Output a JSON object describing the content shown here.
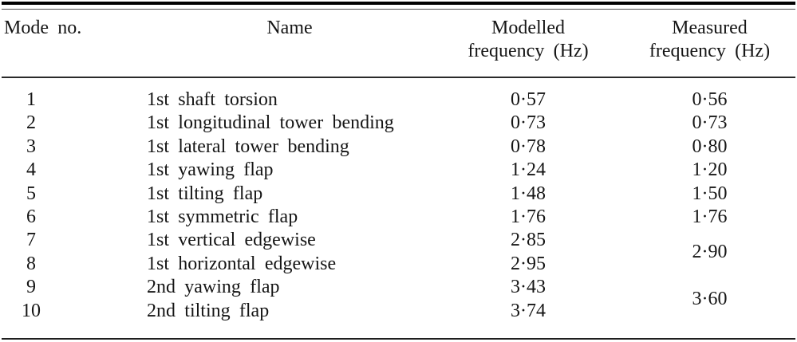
{
  "table": {
    "header": {
      "mode": "Mode no.",
      "name": "Name",
      "modelled_line1": "Modelled",
      "modelled_line2": "frequency (Hz)",
      "measured_line1": "Measured",
      "measured_line2": "frequency (Hz)"
    },
    "rows": [
      {
        "mode": "1",
        "name": "1st shaft torsion",
        "modelled": "0·57",
        "measured": "0·56",
        "measured_span": 1
      },
      {
        "mode": "2",
        "name": "1st longitudinal tower bending",
        "modelled": "0·73",
        "measured": "0·73",
        "measured_span": 1
      },
      {
        "mode": "3",
        "name": "1st lateral tower bending",
        "modelled": "0·78",
        "measured": "0·80",
        "measured_span": 1
      },
      {
        "mode": "4",
        "name": "1st yawing flap",
        "modelled": "1·24",
        "measured": "1·20",
        "measured_span": 1
      },
      {
        "mode": "5",
        "name": "1st tilting flap",
        "modelled": "1·48",
        "measured": "1·50",
        "measured_span": 1
      },
      {
        "mode": "6",
        "name": "1st symmetric flap",
        "modelled": "1·76",
        "measured": "1·76",
        "measured_span": 1
      },
      {
        "mode": "7",
        "name": "1st vertical edgewise",
        "modelled": "2·85",
        "measured": "2·90",
        "measured_span": 2
      },
      {
        "mode": "8",
        "name": "1st horizontal edgewise",
        "modelled": "2·95",
        "measured": null,
        "measured_span": 0
      },
      {
        "mode": "9",
        "name": "2nd yawing flap",
        "modelled": "3·43",
        "measured": "3·60",
        "measured_span": 2
      },
      {
        "mode": "10",
        "name": "2nd tilting flap",
        "modelled": "3·74",
        "measured": null,
        "measured_span": 0
      }
    ]
  },
  "chart_data": {
    "type": "table",
    "columns": [
      "Mode no.",
      "Name",
      "Modelled frequency (Hz)",
      "Measured frequency (Hz)"
    ],
    "decimal_separator": "middle-dot",
    "rows": [
      [
        "1",
        "1st shaft torsion",
        "0·57",
        "0·56"
      ],
      [
        "2",
        "1st longitudinal tower bending",
        "0·73",
        "0·73"
      ],
      [
        "3",
        "1st lateral tower bending",
        "0·78",
        "0·80"
      ],
      [
        "4",
        "1st yawing flap",
        "1·24",
        "1·20"
      ],
      [
        "5",
        "1st tilting flap",
        "1·48",
        "1·50"
      ],
      [
        "6",
        "1st symmetric flap",
        "1·76",
        "1·76"
      ],
      [
        "7",
        "1st vertical edgewise",
        "2·85",
        "2·90 (shared with mode 8)"
      ],
      [
        "8",
        "1st horizontal edgewise",
        "2·95",
        ""
      ],
      [
        "9",
        "2nd yawing flap",
        "3·43",
        "3·60 (shared with mode 10)"
      ],
      [
        "10",
        "2nd tilting flap",
        "3·74",
        ""
      ]
    ]
  },
  "colors": {
    "background": "#ffffff",
    "text": "#151515",
    "rule": "#000000"
  }
}
